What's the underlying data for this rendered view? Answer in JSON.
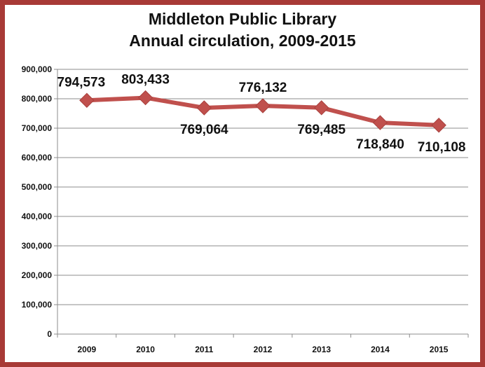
{
  "colors": {
    "frame": "#a83a36",
    "series": "#c0504d",
    "grid": "#8c8c8c"
  },
  "chart_data": {
    "type": "line",
    "title": "Middleton Public Library",
    "subtitle": "Annual circulation, 2009-2015",
    "categories": [
      "2009",
      "2010",
      "2011",
      "2012",
      "2013",
      "2014",
      "2015"
    ],
    "series": [
      {
        "values": [
          794573,
          803433,
          769064,
          776132,
          769485,
          718840,
          710108
        ]
      }
    ],
    "data_labels": [
      "794,573",
      "803,433",
      "769,064",
      "776,132",
      "769,485",
      "718,840",
      "710,108"
    ],
    "yticks": [
      "0",
      "100,000",
      "200,000",
      "300,000",
      "400,000",
      "500,000",
      "600,000",
      "700,000",
      "800,000",
      "900,000"
    ],
    "ylim": [
      0,
      900000
    ],
    "grid": true,
    "marker": "diamond"
  }
}
